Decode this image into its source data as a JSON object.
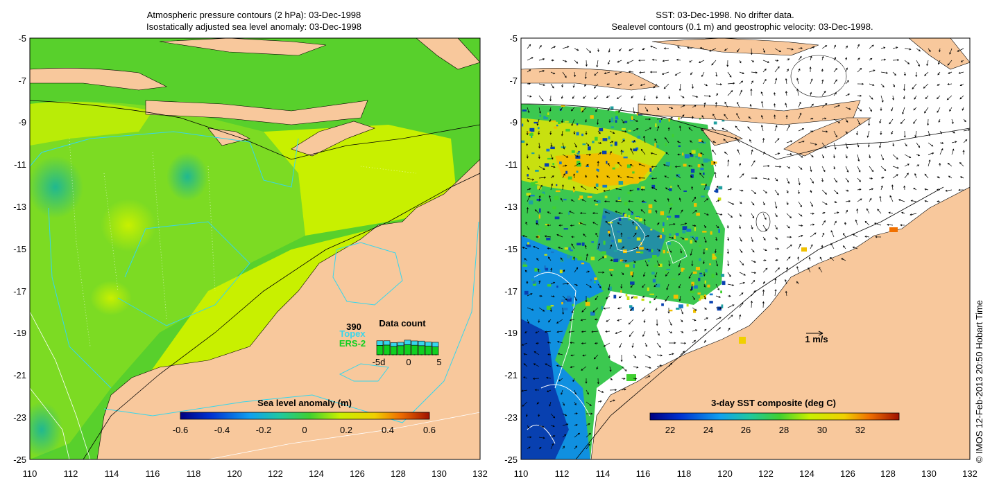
{
  "left_panel": {
    "title_line1": "Atmospheric pressure contours (2 hPa): 03-Dec-1998",
    "title_line2": "Isostatically adjusted sea level anomaly: 03-Dec-1998",
    "y_ticks": [
      "-5",
      "-7",
      "-9",
      "-11",
      "-13",
      "-15",
      "-17",
      "-19",
      "-21",
      "-23",
      "-25"
    ],
    "x_ticks": [
      "110",
      "112",
      "114",
      "116",
      "118",
      "120",
      "122",
      "124",
      "126",
      "128",
      "130",
      "132"
    ],
    "colorbar_title": "Sea level anomaly (m)",
    "colorbar_ticks": [
      "-0.6",
      "-0.4",
      "-0.2",
      "0",
      "0.2",
      "0.4",
      "0.6"
    ],
    "inset": {
      "count": "390",
      "topex_label": "Topex",
      "ers2_label": "ERS-2",
      "title": "Data count",
      "x_labels": [
        "-5d",
        "0",
        "5"
      ],
      "topex_color": "#36d6ec",
      "ers2_color": "#10d020",
      "bars_ers2": [
        0.62,
        0.64,
        0.55,
        0.6,
        0.66,
        0.63,
        0.6,
        0.58,
        0.52
      ],
      "bars_topex": [
        0.3,
        0.28,
        0.25,
        0.22,
        0.3,
        0.28,
        0.3,
        0.26,
        0.3
      ]
    }
  },
  "right_panel": {
    "title_line1": "SST: 03-Dec-1998. No drifter data.",
    "title_line2": "Sealevel contours (0.1 m) and geostrophic velocity: 03-Dec-1998.",
    "y_ticks": [
      "-5",
      "-7",
      "-9",
      "-11",
      "-13",
      "-15",
      "-17",
      "-19",
      "-21",
      "-23",
      "-25"
    ],
    "x_ticks": [
      "110",
      "112",
      "114",
      "116",
      "118",
      "120",
      "122",
      "124",
      "126",
      "128",
      "130",
      "132"
    ],
    "colorbar_title": "3-day SST composite (deg C)",
    "colorbar_ticks": [
      "22",
      "24",
      "26",
      "28",
      "30",
      "32"
    ],
    "scale_label": "1 m/s"
  },
  "credit": "© IMOS 12-Feb-2013 20:50 Hobart Time",
  "colors": {
    "land": "#f8c89c",
    "sla_green": "#5ad02a",
    "sla_yellowgreen": "#c8f000",
    "contour_cyan": "#36d6ec"
  }
}
